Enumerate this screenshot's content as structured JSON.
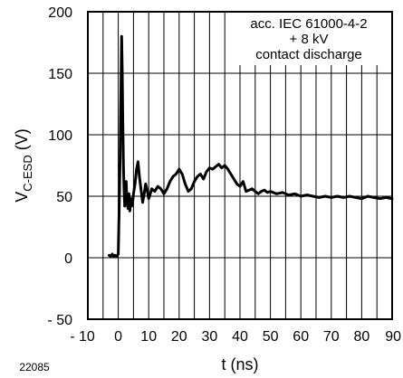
{
  "chart_data": {
    "type": "line",
    "title": "",
    "xlabel": "t (ns)",
    "ylabel_main": "V",
    "ylabel_sub": "C-ESD",
    "ylabel_unit": " (V)",
    "xlim": [
      -10,
      90
    ],
    "ylim": [
      -50,
      200
    ],
    "xticks": [
      -10,
      0,
      10,
      20,
      30,
      40,
      50,
      60,
      70,
      80,
      90
    ],
    "xtick_labels": [
      "- 10",
      "0",
      "10",
      "20",
      "30",
      "40",
      "50",
      "60",
      "70",
      "80",
      "90"
    ],
    "yticks": [
      200,
      150,
      100,
      50,
      0,
      -50
    ],
    "ytick_labels": [
      "200",
      "150",
      "100",
      "50",
      "0",
      "- 50"
    ],
    "grid": true,
    "annotation": [
      "acc. IEC 61000-4-2",
      "+ 8 kV",
      "contact discharge"
    ],
    "figure_code": "22085",
    "series": [
      {
        "x": [
          -3,
          -2.5,
          -2,
          -1.5,
          -1,
          -0.5,
          0,
          0.3,
          0.6,
          0.9,
          1.1,
          1.3,
          1.5,
          1.7,
          1.9,
          2.1,
          2.3,
          2.6,
          2.9,
          3.2,
          3.5,
          3.8,
          4.1,
          4.4,
          4.7,
          5,
          5.5,
          6,
          6.5,
          7,
          7.5,
          8,
          8.5,
          9,
          9.5,
          10,
          10.5,
          11,
          12,
          13,
          14,
          15,
          16,
          17,
          18,
          19,
          20,
          21,
          22,
          23,
          24,
          25,
          26,
          27,
          28,
          29,
          30,
          31,
          32,
          33,
          34,
          35,
          36,
          37,
          38,
          39,
          40,
          41,
          42,
          43,
          44,
          45,
          46,
          47,
          48,
          49,
          50,
          52,
          54,
          56,
          58,
          60,
          62,
          64,
          66,
          68,
          70,
          72,
          74,
          76,
          78,
          80,
          82,
          84,
          86,
          88,
          90
        ],
        "y": [
          2,
          1,
          3,
          1,
          2,
          1,
          3,
          40,
          80,
          140,
          180,
          150,
          110,
          75,
          55,
          42,
          50,
          62,
          45,
          40,
          52,
          38,
          48,
          42,
          45,
          52,
          60,
          72,
          78,
          65,
          55,
          45,
          52,
          60,
          55,
          48,
          52,
          56,
          54,
          58,
          56,
          52,
          56,
          62,
          66,
          68,
          72,
          68,
          60,
          54,
          56,
          62,
          66,
          68,
          64,
          70,
          73,
          72,
          74,
          76,
          73,
          75,
          72,
          68,
          64,
          60,
          58,
          62,
          54,
          55,
          56,
          54,
          52,
          54,
          55,
          53,
          54,
          52,
          53,
          51,
          52,
          50,
          51,
          50,
          49,
          50,
          49,
          50,
          49,
          50,
          49,
          48,
          50,
          49,
          48,
          49,
          48
        ]
      }
    ]
  }
}
